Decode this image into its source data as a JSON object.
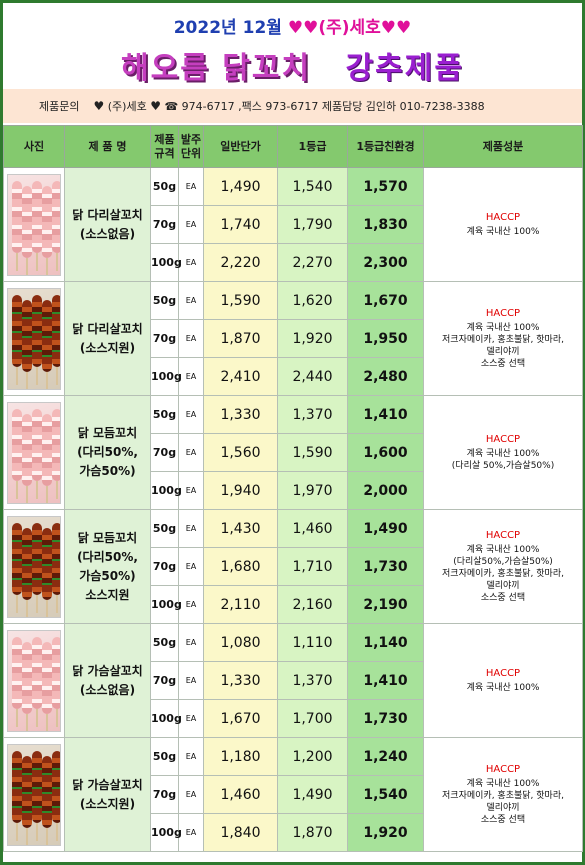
{
  "header": {
    "year": "2022년",
    "month": "12월",
    "hearts": "♥♥",
    "company": "(주)세호",
    "hearts_end": "♥♥",
    "title": "해오름 닭꼬치",
    "subtitle": "강추제품"
  },
  "contact": {
    "label": "제품문의",
    "heart": "♥",
    "company": "(주)세호",
    "phone": "☎ 974-6717 ,팩스 973-6717",
    "manager": "제품담당 김인하 010-7238-3388"
  },
  "columns": [
    "사진",
    "제 품 명",
    "제품\n규격",
    "발주\n단위",
    "일반단가",
    "1등급",
    "1등급친환경",
    "제품성분"
  ],
  "products": [
    {
      "photo_icon": "raw-chicken-skewer-icon",
      "name": "닭 다리살꼬치\n(소스없음)",
      "ingredients": {
        "haccp": "HACCP",
        "text": "계육 국내산 100%"
      },
      "rows": [
        {
          "spec": "50g",
          "unit": "EA",
          "p_general": "1,490",
          "p_grade1": "1,540",
          "p_eco": "1,570"
        },
        {
          "spec": "70g",
          "unit": "EA",
          "p_general": "1,740",
          "p_grade1": "1,790",
          "p_eco": "1,830"
        },
        {
          "spec": "100g",
          "unit": "EA",
          "p_general": "2,220",
          "p_grade1": "2,270",
          "p_eco": "2,300"
        }
      ]
    },
    {
      "photo_icon": "sauced-chicken-skewer-icon",
      "name": "닭 다리살꼬치\n(소스지원)",
      "ingredients": {
        "haccp": "HACCP",
        "text": "계육 국내산 100%\n저크자메이카, 홍초불닭, 핫마라,\n델리야끼\n소스중 선택"
      },
      "rows": [
        {
          "spec": "50g",
          "unit": "EA",
          "p_general": "1,590",
          "p_grade1": "1,620",
          "p_eco": "1,670"
        },
        {
          "spec": "70g",
          "unit": "EA",
          "p_general": "1,870",
          "p_grade1": "1,920",
          "p_eco": "1,950"
        },
        {
          "spec": "100g",
          "unit": "EA",
          "p_general": "2,410",
          "p_grade1": "2,440",
          "p_eco": "2,480"
        }
      ]
    },
    {
      "photo_icon": "raw-chicken-skewer-icon",
      "name": "닭 모듬꼬치\n(다리50%,\n가슴50%)",
      "ingredients": {
        "haccp": "HACCP",
        "text": "계육 국내산 100%\n(다리살 50%,가슴살50%)"
      },
      "rows": [
        {
          "spec": "50g",
          "unit": "EA",
          "p_general": "1,330",
          "p_grade1": "1,370",
          "p_eco": "1,410"
        },
        {
          "spec": "70g",
          "unit": "EA",
          "p_general": "1,560",
          "p_grade1": "1,590",
          "p_eco": "1,600"
        },
        {
          "spec": "100g",
          "unit": "EA",
          "p_general": "1,940",
          "p_grade1": "1,970",
          "p_eco": "2,000"
        }
      ]
    },
    {
      "photo_icon": "sauced-chicken-skewer-icon",
      "name": "닭 모듬꼬치\n(다리50%,\n가슴50%)\n소스지원",
      "ingredients": {
        "haccp": "HACCP",
        "text": "계육 국내산 100%\n(다리살50%,가슴살50%)\n저크자메이카, 홍초불닭, 핫마라,\n델리야끼\n소스중 선택"
      },
      "rows": [
        {
          "spec": "50g",
          "unit": "EA",
          "p_general": "1,430",
          "p_grade1": "1,460",
          "p_eco": "1,490"
        },
        {
          "spec": "70g",
          "unit": "EA",
          "p_general": "1,680",
          "p_grade1": "1,710",
          "p_eco": "1,730"
        },
        {
          "spec": "100g",
          "unit": "EA",
          "p_general": "2,110",
          "p_grade1": "2,160",
          "p_eco": "2,190"
        }
      ]
    },
    {
      "photo_icon": "raw-chicken-skewer-icon",
      "name": "닭 가슴살꼬치\n(소스없음)",
      "ingredients": {
        "haccp": "HACCP",
        "text": "계육 국내산 100%"
      },
      "rows": [
        {
          "spec": "50g",
          "unit": "EA",
          "p_general": "1,080",
          "p_grade1": "1,110",
          "p_eco": "1,140"
        },
        {
          "spec": "70g",
          "unit": "EA",
          "p_general": "1,330",
          "p_grade1": "1,370",
          "p_eco": "1,410"
        },
        {
          "spec": "100g",
          "unit": "EA",
          "p_general": "1,670",
          "p_grade1": "1,700",
          "p_eco": "1,730"
        }
      ]
    },
    {
      "photo_icon": "sauced-chicken-skewer-icon",
      "name": "닭 가슴살꼬치\n(소스지원)",
      "ingredients": {
        "haccp": "HACCP",
        "text": "계육 국내산 100%\n저크자메이카, 홍초불닭, 핫마라,\n델리야끼\n소스중 선택"
      },
      "rows": [
        {
          "spec": "50g",
          "unit": "EA",
          "p_general": "1,180",
          "p_grade1": "1,200",
          "p_eco": "1,240"
        },
        {
          "spec": "70g",
          "unit": "EA",
          "p_general": "1,460",
          "p_grade1": "1,490",
          "p_eco": "1,540"
        },
        {
          "spec": "100g",
          "unit": "EA",
          "p_general": "1,840",
          "p_grade1": "1,870",
          "p_eco": "1,920"
        }
      ]
    }
  ]
}
